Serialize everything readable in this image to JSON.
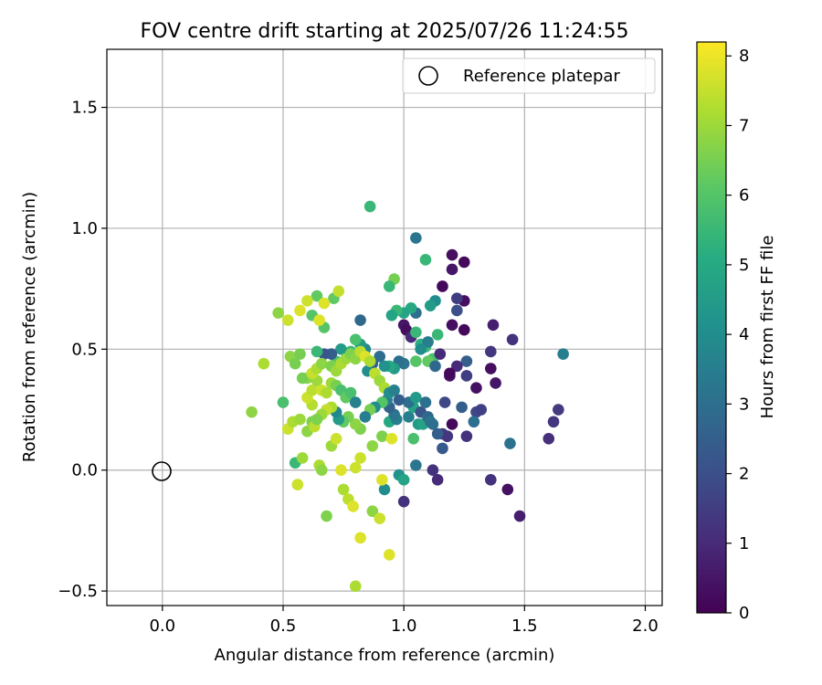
{
  "chart_data": {
    "type": "scatter",
    "title": "FOV centre drift starting at 2025/07/26 11:24:55",
    "xlabel": "Angular distance from reference (arcmin)",
    "ylabel": "Rotation from reference (arcmin)",
    "xlim": [
      -0.23,
      2.07
    ],
    "ylim": [
      -0.56,
      1.74
    ],
    "xticks": [
      0.0,
      0.5,
      1.0,
      1.5,
      2.0
    ],
    "xtick_labels": [
      "0.0",
      "0.5",
      "1.0",
      "1.5",
      "2.0"
    ],
    "yticks": [
      -0.5,
      0.0,
      0.5,
      1.0,
      1.5
    ],
    "ytick_labels": [
      "−0.5",
      "0.0",
      "0.5",
      "1.0",
      "1.5"
    ],
    "grid": true,
    "legend": {
      "position": "top-right",
      "entries": [
        "Reference platepar"
      ]
    },
    "colormap": "viridis",
    "colorbar": {
      "label": "Hours from first FF file",
      "range": [
        0,
        8.2
      ],
      "ticks": [
        0,
        1,
        2,
        3,
        4,
        5,
        6,
        7,
        8
      ],
      "tick_labels": [
        "0",
        "1",
        "2",
        "3",
        "4",
        "5",
        "6",
        "7",
        "8"
      ]
    },
    "reference_point": {
      "x": 0.0,
      "y": 0.0
    },
    "points": [
      [
        1.2,
        0.89,
        0.3
      ],
      [
        1.25,
        0.86,
        0.2
      ],
      [
        1.2,
        0.83,
        0.5
      ],
      [
        1.16,
        0.76,
        0.2
      ],
      [
        1.25,
        0.7,
        0.3
      ],
      [
        1.22,
        0.71,
        1.5
      ],
      [
        1.22,
        0.66,
        2.0
      ],
      [
        1.2,
        0.6,
        0.3
      ],
      [
        1.25,
        0.58,
        0.2
      ],
      [
        1.37,
        0.6,
        0.7
      ],
      [
        1.45,
        0.54,
        1.2
      ],
      [
        1.36,
        0.49,
        1.3
      ],
      [
        1.36,
        0.42,
        0.3
      ],
      [
        1.38,
        0.36,
        0.5
      ],
      [
        1.3,
        0.34,
        0.4
      ],
      [
        1.26,
        0.45,
        2.5
      ],
      [
        1.26,
        0.39,
        1.5
      ],
      [
        1.22,
        0.43,
        1.0
      ],
      [
        1.19,
        0.39,
        0.4
      ],
      [
        1.19,
        0.4,
        0.2
      ],
      [
        1.3,
        0.24,
        1.8
      ],
      [
        1.32,
        0.25,
        1.6
      ],
      [
        1.29,
        0.2,
        3.0
      ],
      [
        1.24,
        0.26,
        2.5
      ],
      [
        1.2,
        0.19,
        0.2
      ],
      [
        1.17,
        0.28,
        1.8
      ],
      [
        1.16,
        0.15,
        1.5
      ],
      [
        1.18,
        0.14,
        1.0
      ],
      [
        1.18,
        0.14,
        1.3
      ],
      [
        1.14,
        0.15,
        2.5
      ],
      [
        1.16,
        0.09,
        2.3
      ],
      [
        1.26,
        0.14,
        1.2
      ],
      [
        1.44,
        0.11,
        3.1
      ],
      [
        1.14,
        -0.04,
        1.0
      ],
      [
        1.12,
        0.0,
        1.2
      ],
      [
        1.36,
        -0.04,
        1.2
      ],
      [
        1.43,
        -0.08,
        0.4
      ],
      [
        1.48,
        -0.19,
        0.7
      ],
      [
        1.6,
        0.13,
        1.1
      ],
      [
        1.62,
        0.2,
        1.3
      ],
      [
        1.64,
        0.25,
        1.4
      ],
      [
        1.66,
        0.48,
        3.5
      ],
      [
        1.05,
        0.96,
        3.2
      ],
      [
        1.09,
        0.87,
        5.5
      ],
      [
        1.13,
        0.7,
        4.0
      ],
      [
        1.11,
        0.68,
        4.5
      ],
      [
        1.05,
        0.65,
        3.0
      ],
      [
        1.03,
        0.67,
        5.0
      ],
      [
        1.0,
        0.65,
        4.8
      ],
      [
        0.97,
        0.66,
        5.5
      ],
      [
        0.95,
        0.64,
        4.8
      ],
      [
        0.96,
        0.79,
        6.5
      ],
      [
        0.94,
        0.76,
        5.5
      ],
      [
        0.86,
        1.09,
        5.5
      ],
      [
        1.0,
        0.6,
        0.5
      ],
      [
        1.01,
        0.58,
        0.3
      ],
      [
        1.03,
        0.55,
        1.0
      ],
      [
        1.05,
        0.57,
        5.5
      ],
      [
        1.07,
        0.52,
        5.2
      ],
      [
        1.09,
        0.51,
        5.5
      ],
      [
        1.1,
        0.53,
        3.5
      ],
      [
        1.14,
        0.56,
        5.5
      ],
      [
        1.12,
        0.46,
        5.8
      ],
      [
        1.1,
        0.45,
        6.2
      ],
      [
        1.05,
        0.45,
        6.0
      ],
      [
        1.07,
        0.5,
        4.0
      ],
      [
        1.15,
        0.48,
        1.0
      ],
      [
        1.13,
        0.43,
        2.8
      ],
      [
        1.0,
        0.44,
        3.2
      ],
      [
        0.98,
        0.45,
        3.0
      ],
      [
        0.96,
        0.42,
        4.5
      ],
      [
        0.94,
        0.43,
        5.0
      ],
      [
        0.92,
        0.43,
        4.2
      ],
      [
        0.9,
        0.47,
        3.0
      ],
      [
        0.87,
        0.44,
        2.5
      ],
      [
        0.85,
        0.41,
        4.0
      ],
      [
        0.84,
        0.5,
        3.8
      ],
      [
        0.82,
        0.52,
        4.5
      ],
      [
        0.82,
        0.62,
        2.8
      ],
      [
        0.8,
        0.54,
        5.8
      ],
      [
        0.78,
        0.49,
        5.5
      ],
      [
        0.74,
        0.5,
        4.5
      ],
      [
        0.72,
        0.45,
        6.0
      ],
      [
        0.7,
        0.48,
        2.5
      ],
      [
        0.67,
        0.48,
        2.2
      ],
      [
        0.64,
        0.49,
        5.5
      ],
      [
        0.62,
        0.64,
        6.0
      ],
      [
        0.64,
        0.72,
        6.2
      ],
      [
        0.67,
        0.59,
        6.0
      ],
      [
        0.71,
        0.71,
        6.2
      ],
      [
        0.73,
        0.74,
        7.5
      ],
      [
        0.67,
        0.69,
        7.8
      ],
      [
        0.65,
        0.62,
        7.8
      ],
      [
        0.6,
        0.7,
        7.6
      ],
      [
        0.57,
        0.66,
        7.8
      ],
      [
        0.52,
        0.62,
        7.6
      ],
      [
        0.48,
        0.65,
        6.8
      ],
      [
        0.53,
        0.47,
        6.8
      ],
      [
        0.55,
        0.44,
        6.5
      ],
      [
        0.57,
        0.48,
        6.5
      ],
      [
        0.42,
        0.44,
        7.2
      ],
      [
        0.37,
        0.24,
        6.8
      ],
      [
        0.5,
        0.28,
        5.8
      ],
      [
        0.52,
        0.17,
        7.6
      ],
      [
        0.54,
        0.2,
        7.2
      ],
      [
        0.57,
        0.21,
        7.0
      ],
      [
        0.55,
        0.03,
        5.5
      ],
      [
        0.56,
        -0.06,
        7.6
      ],
      [
        0.58,
        0.05,
        7.0
      ],
      [
        0.6,
        0.16,
        6.8
      ],
      [
        0.62,
        0.2,
        6.6
      ],
      [
        0.63,
        0.18,
        7.4
      ],
      [
        0.65,
        0.02,
        7.2
      ],
      [
        0.66,
        0.0,
        6.8
      ],
      [
        0.68,
        -0.19,
        6.6
      ],
      [
        0.7,
        0.1,
        7.0
      ],
      [
        0.72,
        0.13,
        7.6
      ],
      [
        0.74,
        0.0,
        7.8
      ],
      [
        0.75,
        -0.08,
        7.2
      ],
      [
        0.77,
        -0.12,
        7.4
      ],
      [
        0.79,
        -0.15,
        7.8
      ],
      [
        0.8,
        -0.48,
        7.2
      ],
      [
        0.82,
        -0.28,
        7.8
      ],
      [
        0.87,
        -0.17,
        6.8
      ],
      [
        0.9,
        -0.2,
        7.6
      ],
      [
        0.94,
        -0.35,
        7.8
      ],
      [
        0.8,
        0.01,
        7.6
      ],
      [
        0.82,
        0.05,
        7.6
      ],
      [
        0.87,
        0.1,
        6.8
      ],
      [
        0.91,
        0.14,
        6.6
      ],
      [
        0.94,
        0.2,
        5.0
      ],
      [
        0.95,
        0.13,
        7.8
      ],
      [
        0.92,
        -0.08,
        4.0
      ],
      [
        0.91,
        -0.04,
        7.8
      ],
      [
        0.98,
        -0.02,
        4.2
      ],
      [
        1.0,
        -0.04,
        4.8
      ],
      [
        1.0,
        -0.13,
        1.2
      ],
      [
        1.05,
        0.02,
        3.2
      ],
      [
        1.04,
        0.13,
        5.8
      ],
      [
        1.06,
        0.19,
        4.5
      ],
      [
        1.02,
        0.22,
        3.5
      ],
      [
        1.04,
        0.26,
        4.8
      ],
      [
        1.02,
        0.28,
        3.0
      ],
      [
        1.05,
        0.3,
        4.5
      ],
      [
        1.07,
        0.24,
        2.2
      ],
      [
        1.08,
        0.19,
        4.8
      ],
      [
        1.09,
        0.28,
        3.0
      ],
      [
        1.1,
        0.22,
        2.8
      ],
      [
        1.11,
        0.2,
        3.2
      ],
      [
        1.12,
        0.19,
        3.0
      ],
      [
        0.97,
        0.21,
        3.5
      ],
      [
        0.96,
        0.23,
        3.2
      ],
      [
        0.94,
        0.26,
        2.6
      ],
      [
        0.93,
        0.29,
        3.5
      ],
      [
        0.91,
        0.28,
        6.0
      ],
      [
        0.88,
        0.26,
        4.0
      ],
      [
        0.86,
        0.25,
        6.5
      ],
      [
        0.84,
        0.22,
        3.5
      ],
      [
        0.82,
        0.17,
        6.6
      ],
      [
        0.8,
        0.19,
        6.8
      ],
      [
        0.77,
        0.22,
        6.5
      ],
      [
        0.75,
        0.2,
        6.2
      ],
      [
        0.73,
        0.21,
        4.5
      ],
      [
        0.72,
        0.24,
        3.8
      ],
      [
        0.7,
        0.26,
        7.2
      ],
      [
        0.68,
        0.25,
        7.5
      ],
      [
        0.66,
        0.23,
        7.0
      ],
      [
        0.64,
        0.21,
        6.6
      ],
      [
        0.62,
        0.27,
        7.3
      ],
      [
        0.6,
        0.3,
        7.6
      ],
      [
        0.62,
        0.33,
        7.4
      ],
      [
        0.64,
        0.37,
        7.0
      ],
      [
        0.66,
        0.33,
        7.6
      ],
      [
        0.68,
        0.32,
        7.2
      ],
      [
        0.7,
        0.36,
        7.0
      ],
      [
        0.72,
        0.35,
        6.5
      ],
      [
        0.74,
        0.33,
        5.8
      ],
      [
        0.76,
        0.3,
        6.2
      ],
      [
        0.78,
        0.32,
        5.8
      ],
      [
        0.8,
        0.28,
        3.6
      ],
      [
        0.6,
        0.38,
        6.8
      ],
      [
        0.58,
        0.38,
        6.5
      ],
      [
        0.62,
        0.4,
        7.5
      ],
      [
        0.64,
        0.42,
        7.2
      ],
      [
        0.66,
        0.44,
        6.8
      ],
      [
        0.7,
        0.43,
        6.6
      ],
      [
        0.72,
        0.41,
        7.0
      ],
      [
        0.74,
        0.44,
        7.2
      ],
      [
        0.76,
        0.46,
        7.0
      ],
      [
        0.78,
        0.48,
        6.6
      ],
      [
        0.8,
        0.46,
        6.8
      ],
      [
        0.82,
        0.49,
        7.4
      ],
      [
        0.84,
        0.47,
        7.8
      ],
      [
        0.86,
        0.45,
        7.2
      ],
      [
        0.88,
        0.4,
        7.4
      ],
      [
        0.9,
        0.37,
        7.0
      ],
      [
        0.92,
        0.34,
        7.2
      ],
      [
        0.94,
        0.32,
        4.0
      ],
      [
        0.96,
        0.33,
        3.6
      ],
      [
        0.98,
        0.29,
        2.5
      ]
    ]
  }
}
